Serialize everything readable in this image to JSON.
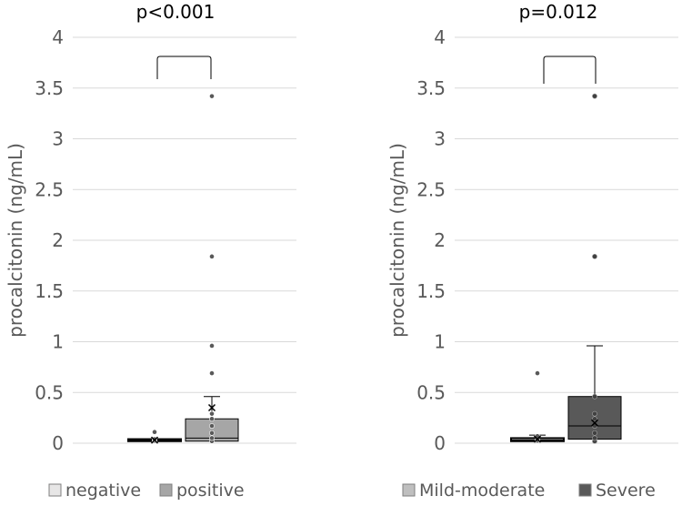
{
  "chart_data": [
    {
      "type": "box",
      "annotation": "p<0.001",
      "ylabel": "procalcitonin (ng/mL)",
      "ylim": [
        0,
        4
      ],
      "yticks": [
        "0",
        "0.5",
        "1",
        "1.5",
        "2",
        "2.5",
        "3",
        "3.5",
        "4"
      ],
      "grid": true,
      "legend_position": "bottom",
      "series": [
        {
          "name": "negative",
          "color": "#e7e6e6",
          "q1": 0.02,
          "median": 0.03,
          "q3": 0.04,
          "whisker_low": 0.02,
          "whisker_high": 0.04,
          "mean": 0.03,
          "points": [
            0.02,
            0.03,
            0.04,
            0.11
          ]
        },
        {
          "name": "positive",
          "color": "#a6a6a6",
          "q1": 0.02,
          "median": 0.05,
          "q3": 0.24,
          "whisker_low": 0.02,
          "whisker_high": 0.46,
          "mean": 0.35,
          "points": [
            0.02,
            0.05,
            0.1,
            0.17,
            0.24,
            0.29,
            0.69,
            0.96,
            1.84,
            3.42
          ]
        }
      ]
    },
    {
      "type": "box",
      "annotation": "p=0.012",
      "ylabel": "procalcitonin (ng/mL)",
      "ylim": [
        0,
        4
      ],
      "yticks": [
        "0",
        "0.5",
        "1",
        "1.5",
        "2",
        "2.5",
        "3",
        "3.5",
        "4"
      ],
      "grid": true,
      "legend_position": "bottom",
      "series": [
        {
          "name": "Mild-moderate",
          "color": "#bfbfbf",
          "q1": 0.02,
          "median": 0.03,
          "q3": 0.05,
          "whisker_low": 0.02,
          "whisker_high": 0.08,
          "mean": 0.04,
          "points": [
            0.02,
            0.03,
            0.07,
            0.69
          ]
        },
        {
          "name": "Severe",
          "color": "#595959",
          "q1": 0.04,
          "median": 0.17,
          "q3": 0.46,
          "whisker_low": 0.02,
          "whisker_high": 0.96,
          "mean": 0.2,
          "points": [
            0.02,
            0.05,
            0.1,
            0.17,
            0.24,
            0.29,
            0.46,
            1.84,
            3.42
          ]
        }
      ]
    }
  ]
}
